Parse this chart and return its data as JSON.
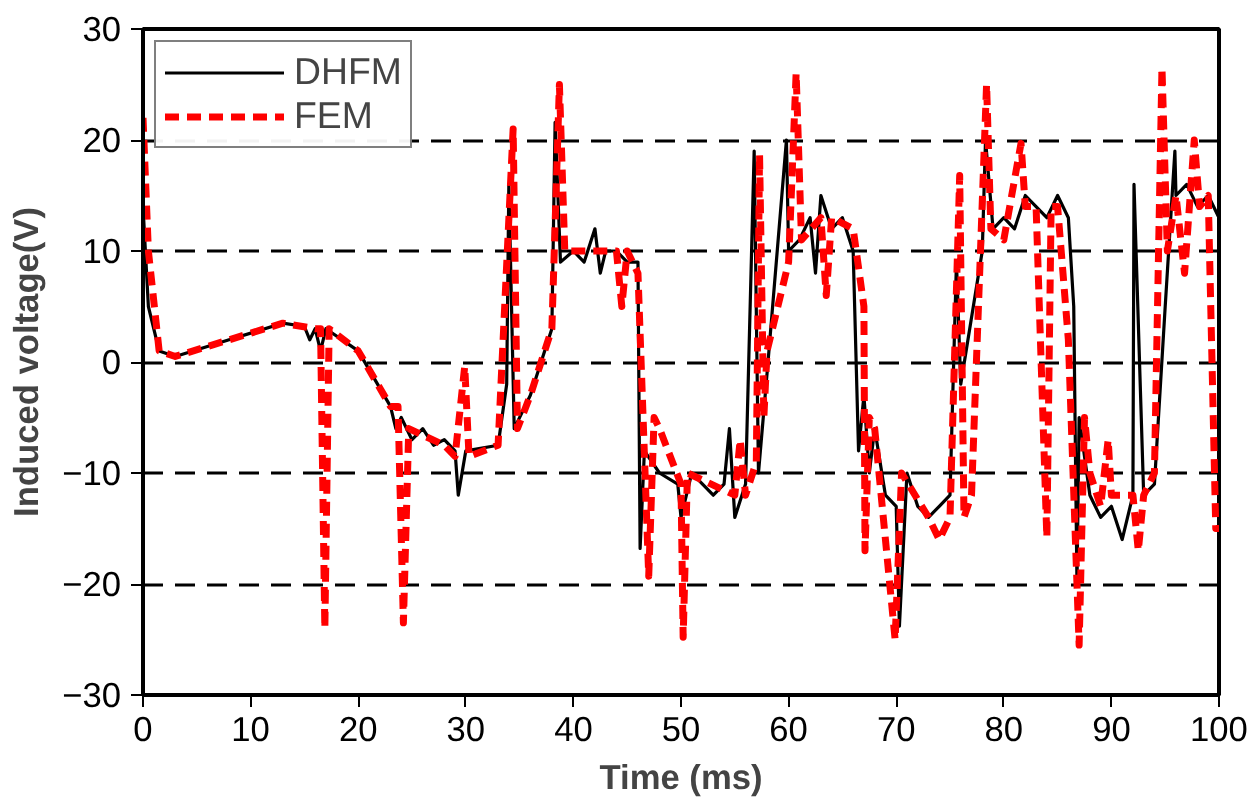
{
  "chart_data": {
    "type": "line",
    "xlabel": "Time (ms)",
    "ylabel": "Induced voltage(V)",
    "xlim": [
      0,
      100
    ],
    "ylim": [
      -30,
      30
    ],
    "xticks": [
      0,
      10,
      20,
      30,
      40,
      50,
      60,
      70,
      80,
      90,
      100
    ],
    "yticks": [
      -30,
      -20,
      -10,
      0,
      10,
      20,
      30
    ],
    "grid": "y",
    "legend": "top left",
    "series": [
      {
        "name": "DHFM",
        "color": "#000000",
        "line_style": "solid",
        "x": [
          0,
          0.5,
          1.5,
          3,
          8,
          13,
          15,
          15.5,
          16,
          16.5,
          17,
          20,
          23,
          23.5,
          24,
          25,
          26,
          27,
          28,
          29,
          29.3,
          30,
          33,
          33.8,
          34,
          34.5,
          36,
          38,
          38.3,
          38.8,
          40,
          41,
          42,
          42.5,
          43,
          44,
          45,
          46,
          46.2,
          46.6,
          48,
          49.7,
          50,
          51,
          52,
          53,
          54,
          54.5,
          55,
          56,
          56.8,
          57.2,
          58,
          59.8,
          60,
          61,
          62,
          62.5,
          63,
          64,
          65,
          66,
          66.5,
          67,
          67.5,
          68,
          69,
          70,
          70.3,
          71,
          72,
          73,
          74,
          75,
          75.6,
          76,
          78,
          78.3,
          79,
          80,
          81,
          82,
          83,
          84,
          85,
          86,
          86.5,
          86.8,
          87,
          88,
          89,
          90,
          91,
          92,
          92.1,
          93,
          94,
          95,
          95.9,
          96,
          97,
          98,
          99,
          100
        ],
        "values": [
          14,
          5,
          1,
          0.5,
          2,
          3.5,
          3.2,
          2,
          3,
          1,
          3,
          1,
          -4,
          -6,
          -5,
          -7,
          -6,
          -7.5,
          -7,
          -8,
          -12,
          -8,
          -7.5,
          -2,
          16,
          -6,
          -3,
          3,
          21.6,
          9,
          10,
          9,
          12,
          8,
          10,
          10,
          9,
          9,
          -16.8,
          -8,
          -10,
          -11,
          -14,
          -10,
          -11,
          -12,
          -11,
          -6,
          -14,
          -11,
          19,
          -10,
          -1,
          20,
          10,
          11,
          13,
          8,
          15,
          12,
          13,
          10,
          -8,
          -3,
          -10,
          -6,
          -12,
          -13,
          -23.8,
          -10,
          -13,
          -14,
          -13,
          -12,
          9,
          -2,
          10,
          20,
          12,
          13,
          12,
          15,
          14,
          13,
          15,
          13,
          5,
          -20,
          -5,
          -12,
          -14,
          -13,
          -16,
          -12,
          16,
          -12,
          -11,
          5,
          19,
          15,
          16,
          14,
          15,
          13
        ]
      },
      {
        "name": "FEM",
        "color": "#ff0000",
        "line_style": "dashed",
        "x": [
          0,
          0.5,
          1.5,
          3,
          8,
          13,
          16,
          16.5,
          16.9,
          17.3,
          20,
          23,
          23.7,
          24.2,
          24.7,
          28,
          29,
          29.9,
          30.3,
          33,
          34.4,
          34.8,
          36,
          38,
          38.7,
          39.2,
          42,
          44,
          44.5,
          45,
          46,
          47,
          47.5,
          48,
          50,
          50.2,
          50.6,
          55,
          55.5,
          56,
          57,
          57.3,
          57.7,
          58,
          60,
          60.7,
          61.2,
          63,
          63.5,
          64,
          66,
          67,
          67.1,
          67.5,
          68,
          69.9,
          70.5,
          73,
          74,
          75,
          75.9,
          76.3,
          77,
          78.4,
          78.8,
          80,
          81.6,
          82,
          83,
          84,
          84.4,
          85,
          86,
          87,
          87.5,
          88,
          89,
          89.7,
          90,
          92,
          92.5,
          93,
          94,
          94.7,
          95.2,
          96,
          96.8,
          97.7,
          98.2,
          99,
          99.7,
          100
        ],
        "values": [
          22,
          10,
          1,
          0.5,
          2,
          3.5,
          3,
          3,
          -24,
          3,
          1,
          -4,
          -4,
          -23.5,
          -6,
          -7.5,
          -8.5,
          -0.4,
          -8.5,
          -7.5,
          21,
          -6,
          -3,
          3,
          25,
          10,
          10,
          10,
          5,
          10,
          8,
          -19.3,
          -5,
          -6,
          -11,
          -24.8,
          -10,
          -12,
          -7,
          -12,
          -9,
          18.7,
          -5,
          1,
          9,
          26,
          11,
          13,
          6,
          13,
          12,
          5,
          -17,
          -5,
          -6,
          -25,
          -10,
          -14,
          -16,
          -14,
          16.8,
          -14,
          -12,
          25,
          12,
          11,
          19.7,
          14,
          14,
          -15.8,
          14,
          14,
          2,
          -25.5,
          -5,
          -10,
          -13,
          -7,
          -12,
          -12,
          -17,
          -12,
          -10,
          26.5,
          10,
          15,
          8,
          20,
          14,
          15,
          -15,
          -15
        ]
      }
    ]
  }
}
